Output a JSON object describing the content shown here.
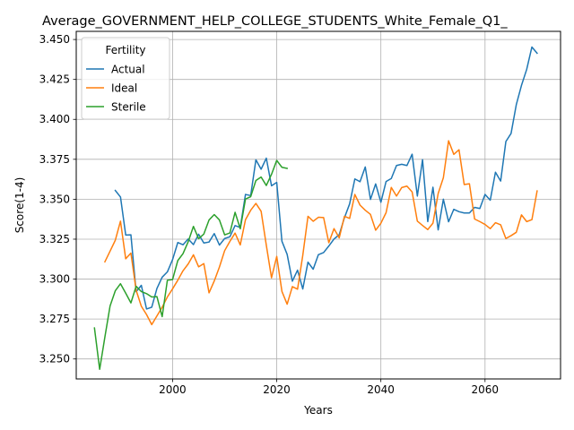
{
  "chart_data": {
    "type": "line",
    "title": "Average_GOVERNMENT_HELP_COLLEGE_STUDENTS_White_Female_Q1_",
    "xlabel": "Years",
    "ylabel": "Score(1-4)",
    "xlim": [
      1981.5,
      2074.5
    ],
    "ylim": [
      3.2375,
      3.4551
    ],
    "xticks": [
      2000,
      2020,
      2040,
      2060
    ],
    "xtick_labels": [
      "2000",
      "2020",
      "2040",
      "2060"
    ],
    "yticks": [
      3.25,
      3.275,
      3.3,
      3.325,
      3.35,
      3.375,
      3.4,
      3.425,
      3.45
    ],
    "ytick_labels": [
      "3.250",
      "3.275",
      "3.300",
      "3.325",
      "3.350",
      "3.375",
      "3.400",
      "3.425",
      "3.450"
    ],
    "grid": true,
    "legend": {
      "title": "Fertility",
      "placement": "top-left"
    },
    "series": [
      {
        "name": "Actual",
        "color": "#1f77b4",
        "x": [
          1989,
          1990,
          1991,
          1992,
          1993,
          1994,
          1995,
          1996,
          1997,
          1998,
          1999,
          2000,
          2001,
          2002,
          2003,
          2004,
          2005,
          2006,
          2007,
          2008,
          2009,
          2010,
          2011,
          2012,
          2013,
          2014,
          2015,
          2016,
          2017,
          2018,
          2019,
          2020,
          2021,
          2022,
          2023,
          2024,
          2025,
          2026,
          2027,
          2028,
          2029,
          2030,
          2031,
          2032,
          2033,
          2034,
          2035,
          2036,
          2037,
          2038,
          2039,
          2040,
          2041,
          2042,
          2043,
          2044,
          2045,
          2046,
          2047,
          2048,
          2049,
          2050,
          2051,
          2052,
          2053,
          2054,
          2055,
          2056,
          2057,
          2058,
          2059,
          2060,
          2061,
          2062,
          2063,
          2064,
          2065,
          2066,
          2067,
          2068,
          2069,
          2070
        ],
        "y": [
          3.3555,
          3.3514,
          3.3276,
          3.3277,
          3.2921,
          3.2961,
          3.2813,
          3.2824,
          3.2942,
          3.3012,
          3.3045,
          3.3122,
          3.3229,
          3.3215,
          3.3251,
          3.3216,
          3.3281,
          3.3226,
          3.3232,
          3.3285,
          3.3213,
          3.3254,
          3.3265,
          3.3335,
          3.3323,
          3.353,
          3.3523,
          3.3747,
          3.3688,
          3.3757,
          3.3584,
          3.3605,
          3.3237,
          3.3155,
          3.2987,
          3.3056,
          3.2938,
          3.3106,
          3.3062,
          3.3153,
          3.3166,
          3.3207,
          3.3251,
          3.3278,
          3.3384,
          3.3471,
          3.3627,
          3.361,
          3.3702,
          3.3499,
          3.3596,
          3.3481,
          3.3611,
          3.363,
          3.3711,
          3.3719,
          3.3711,
          3.3782,
          3.352,
          3.3748,
          3.336,
          3.3575,
          3.3308,
          3.35,
          3.3359,
          3.3437,
          3.3422,
          3.3414,
          3.3414,
          3.3449,
          3.3442,
          3.353,
          3.3494,
          3.3669,
          3.3614,
          3.3861,
          3.3912,
          3.4092,
          3.4213,
          3.4313,
          3.4453,
          3.4414
        ]
      },
      {
        "name": "Ideal",
        "color": "#ff7f0e",
        "x": [
          1987,
          1988,
          1989,
          1990,
          1991,
          1992,
          1993,
          1994,
          1995,
          1996,
          1997,
          1998,
          1999,
          2000,
          2001,
          2002,
          2003,
          2004,
          2005,
          2006,
          2007,
          2008,
          2009,
          2010,
          2011,
          2012,
          2013,
          2014,
          2015,
          2016,
          2017,
          2018,
          2019,
          2020,
          2021,
          2022,
          2023,
          2024,
          2025,
          2026,
          2027,
          2028,
          2029,
          2030,
          2031,
          2032,
          2033,
          2034,
          2035,
          2036,
          2037,
          2038,
          2039,
          2040,
          2041,
          2042,
          2043,
          2044,
          2045,
          2046,
          2047,
          2048,
          2049,
          2050,
          2051,
          2052,
          2053,
          2054,
          2055,
          2056,
          2057,
          2058,
          2059,
          2060,
          2061,
          2062,
          2063,
          2064,
          2065,
          2066,
          2067,
          2068,
          2069,
          2070
        ],
        "y": [
          3.3108,
          3.3175,
          3.3243,
          3.3363,
          3.3127,
          3.3163,
          3.2931,
          3.283,
          3.2778,
          3.2715,
          3.277,
          3.2824,
          3.2888,
          3.2939,
          3.2993,
          3.3052,
          3.3095,
          3.3152,
          3.3077,
          3.3097,
          3.2914,
          3.2988,
          3.3076,
          3.3178,
          3.3236,
          3.3288,
          3.3214,
          3.3372,
          3.3431,
          3.3474,
          3.3425,
          3.3212,
          3.3008,
          3.3142,
          3.2923,
          3.2843,
          3.2953,
          3.2937,
          3.3148,
          3.3393,
          3.3362,
          3.3387,
          3.3385,
          3.3228,
          3.3316,
          3.3258,
          3.3393,
          3.338,
          3.353,
          3.3463,
          3.3431,
          3.3405,
          3.3306,
          3.335,
          3.3416,
          3.3574,
          3.352,
          3.3573,
          3.3582,
          3.3546,
          3.3363,
          3.3336,
          3.331,
          3.335,
          3.3536,
          3.3635,
          3.3866,
          3.3781,
          3.381,
          3.3592,
          3.3597,
          3.3376,
          3.336,
          3.3342,
          3.3316,
          3.3353,
          3.334,
          3.3254,
          3.3272,
          3.3293,
          3.3402,
          3.336,
          3.3372,
          3.3552
        ]
      },
      {
        "name": "Sterile",
        "color": "#2ca02c",
        "x": [
          1985,
          1986,
          1987,
          1988,
          1989,
          1990,
          1991,
          1992,
          1993,
          1994,
          1995,
          1996,
          1997,
          1998,
          1999,
          2000,
          2001,
          2002,
          2003,
          2004,
          2005,
          2006,
          2007,
          2008,
          2009,
          2010,
          2011,
          2012,
          2013,
          2014,
          2015,
          2016,
          2017,
          2018,
          2019,
          2020,
          2021,
          2022
        ],
        "y": [
          3.2694,
          3.2435,
          3.2637,
          3.2832,
          3.2927,
          3.2971,
          3.2912,
          3.2851,
          3.2955,
          3.2922,
          3.2909,
          3.2888,
          3.289,
          3.2765,
          3.2993,
          3.2997,
          3.3116,
          3.3159,
          3.3234,
          3.333,
          3.3253,
          3.3282,
          3.337,
          3.3404,
          3.337,
          3.3277,
          3.3289,
          3.3418,
          3.3315,
          3.3501,
          3.3516,
          3.3617,
          3.3639,
          3.3586,
          3.3656,
          3.3743,
          3.37,
          3.3693
        ]
      }
    ]
  }
}
